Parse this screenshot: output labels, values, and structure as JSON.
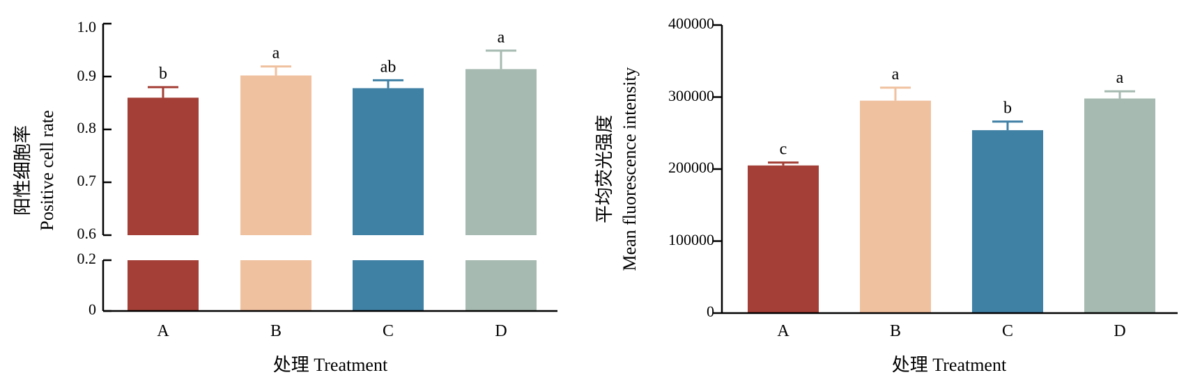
{
  "colors": {
    "A": "#a33f36",
    "B": "#f0c19f",
    "C": "#3f80a5",
    "D": "#a6bab1",
    "axis": "#000000"
  },
  "chart_data": [
    {
      "type": "bar",
      "categories": [
        "A",
        "B",
        "C",
        "D"
      ],
      "values": [
        0.86,
        0.902,
        0.878,
        0.914
      ],
      "errors": [
        0.02,
        0.017,
        0.015,
        0.035
      ],
      "significance": [
        "b",
        "a",
        "ab",
        "a"
      ],
      "ylabel_cn": "阳性细胞率",
      "ylabel_en": "Positive cell rate",
      "xlabel": "处理 Treatment",
      "ylim": [
        0,
        1.0
      ],
      "axis_break": [
        0.2,
        0.6
      ],
      "yticks": [
        "0",
        "0.2",
        "0.6",
        "0.7",
        "0.8",
        "0.9",
        "1.0"
      ],
      "grid": false,
      "legend": "none"
    },
    {
      "type": "bar",
      "categories": [
        "A",
        "B",
        "C",
        "D"
      ],
      "values": [
        205000,
        295000,
        254000,
        298000
      ],
      "errors": [
        4000,
        18000,
        12000,
        10000
      ],
      "significance": [
        "c",
        "a",
        "b",
        "a"
      ],
      "ylabel_cn": "平均荧光强度",
      "ylabel_en": "Mean fluorescence intensity",
      "xlabel": "处理 Treatment",
      "ylim": [
        0,
        400000
      ],
      "yticks": [
        "0",
        "100000",
        "200000",
        "300000",
        "400000"
      ],
      "grid": false,
      "legend": "none"
    }
  ]
}
